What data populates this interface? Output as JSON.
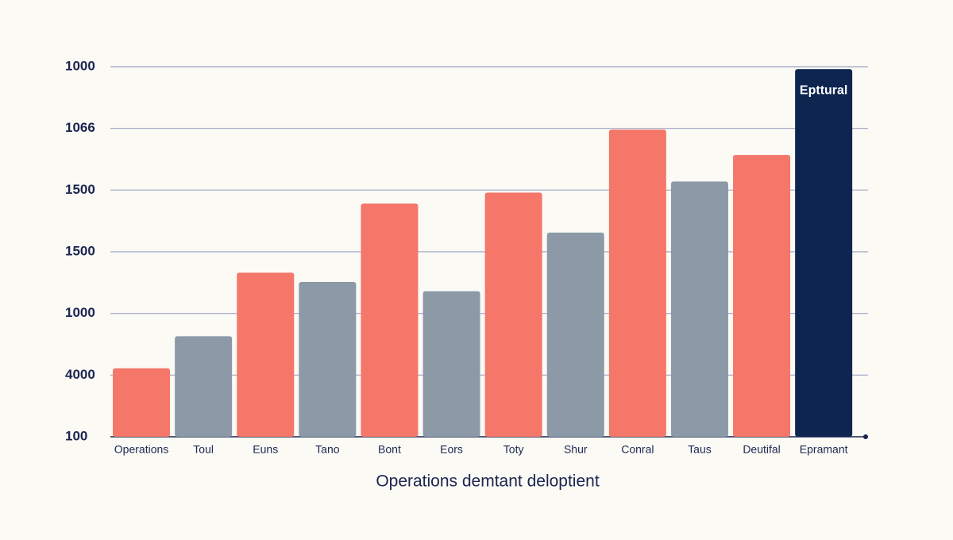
{
  "chart_data": {
    "type": "bar",
    "x_label": "Operations demtant deloptient",
    "categories": [
      "Operations",
      "Toul",
      "Euns",
      "Tano",
      "Bont",
      "Eors",
      "Toty",
      "Shur",
      "Conral",
      "Taus",
      "Deutifal",
      "Epramant"
    ],
    "values": [
      1.11,
      1.63,
      2.66,
      2.51,
      3.78,
      2.36,
      3.96,
      3.31,
      4.98,
      4.14,
      4.57,
      5.96
    ],
    "colors": [
      "#f4776a",
      "#8c9aa7",
      "#f4776a",
      "#8c9aa7",
      "#f4776a",
      "#8c9aa7",
      "#f4776a",
      "#8c9aa7",
      "#f4776a",
      "#8c9aa7",
      "#f4776a",
      "#0e2550"
    ],
    "annotation": {
      "text": "Epttural",
      "index": 11
    },
    "ylim": [
      0,
      6
    ],
    "yticks": [
      {
        "value": 0,
        "label": "100"
      },
      {
        "value": 1,
        "label": "4000"
      },
      {
        "value": 2,
        "label": "1000"
      },
      {
        "value": 3,
        "label": "1500"
      },
      {
        "value": 4,
        "label": "1500"
      },
      {
        "value": 5,
        "label": "1066"
      },
      {
        "value": 6,
        "label": "1000"
      }
    ],
    "grid": true
  }
}
